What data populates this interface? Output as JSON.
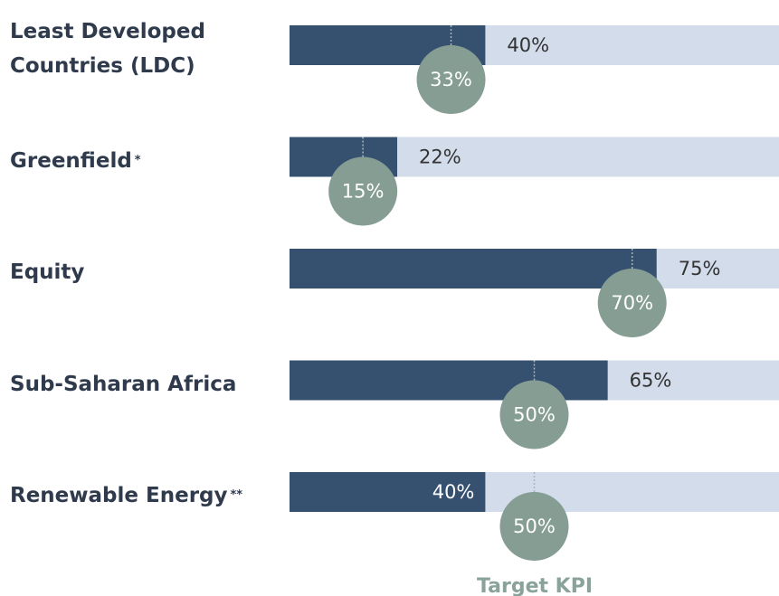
{
  "chart_data": {
    "type": "bar",
    "orientation": "horizontal",
    "categories": [
      "Least Developed Countries (LDC)",
      "Greenfield",
      "Equity",
      "Sub-Saharan Africa",
      "Renewable Energy"
    ],
    "category_notes": [
      null,
      "*",
      null,
      null,
      "**"
    ],
    "values": [
      40,
      22,
      75,
      65,
      40
    ],
    "value_labels": [
      "40%",
      "22%",
      "75%",
      "65%",
      "40%"
    ],
    "color": "#36506f",
    "track_color": "#d3dcea",
    "xlim": [
      0,
      100
    ],
    "target": {
      "name": "Target KPI",
      "values": [
        33,
        15,
        70,
        50,
        50
      ],
      "value_labels": [
        "33%",
        "15%",
        "70%",
        "50%",
        "50%"
      ],
      "color": "#869d94"
    }
  }
}
